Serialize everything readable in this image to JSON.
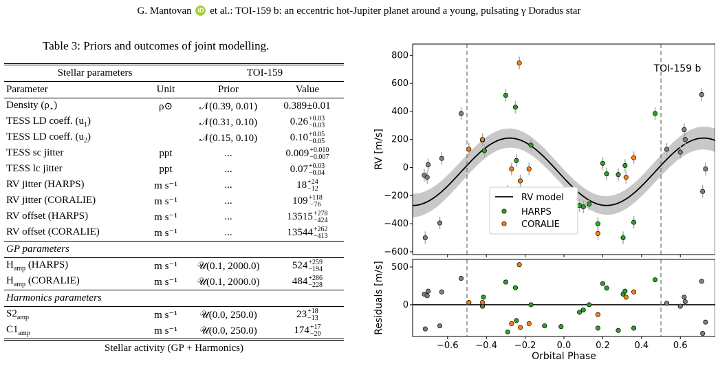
{
  "header": {
    "authors": "G. Mantovan",
    "rest": " et al.: TOI-159 b: an eccentric hot-Jupiter planet around a young, pulsating γ Doradus star",
    "orcid_badge": "iD"
  },
  "table": {
    "caption": "Table 3: Priors and outcomes of joint modelling.",
    "group_header": {
      "left": "Stellar parameters",
      "right": "TOI-159"
    },
    "columns": [
      "Parameter",
      "Unit",
      "Prior",
      "Value"
    ],
    "stellar_rows": [
      {
        "param": "Density (ρ",
        "param_sub": "⋆",
        "param_end": ")",
        "unit": "ρ⊙",
        "prior": "𝒩(0.39, 0.01)",
        "value": "0.389±0.01",
        "up": "",
        "down": ""
      },
      {
        "param": "TESS LD coeff. (u",
        "param_sub": "1",
        "param_end": ")",
        "unit": "",
        "prior": "𝒩(0.31, 0.10)",
        "value": "0.26",
        "up": "+0.03",
        "down": "−0.03"
      },
      {
        "param": "TESS LD coeff. (u",
        "param_sub": "2",
        "param_end": ")",
        "unit": "",
        "prior": "𝒩(0.15, 0.10)",
        "value": "0.10",
        "up": "+0.05",
        "down": "−0.05"
      },
      {
        "param": "TESS sc jitter",
        "param_sub": "",
        "param_end": "",
        "unit": "ppt",
        "prior": "...",
        "value": "0.009",
        "up": "+0.010",
        "down": "−0.007"
      },
      {
        "param": "TESS lc jitter",
        "param_sub": "",
        "param_end": "",
        "unit": "ppt",
        "prior": "...",
        "value": "0.07",
        "up": "+0.03",
        "down": "−0.04"
      },
      {
        "param": "RV jitter (HARPS)",
        "param_sub": "",
        "param_end": "",
        "unit": "m s⁻¹",
        "prior": "...",
        "value": "18",
        "up": "+24",
        "down": "−12"
      },
      {
        "param": "RV jitter (CORALIE)",
        "param_sub": "",
        "param_end": "",
        "unit": "m s⁻¹",
        "prior": "...",
        "value": "109",
        "up": "+118",
        "down": "−76"
      },
      {
        "param": "RV offset (HARPS)",
        "param_sub": "",
        "param_end": "",
        "unit": "m s⁻¹",
        "prior": "...",
        "value": "13515",
        "up": "+278",
        "down": "−424"
      },
      {
        "param": "RV offset (CORALIE)",
        "param_sub": "",
        "param_end": "",
        "unit": "m s⁻¹",
        "prior": "...",
        "value": "13544",
        "up": "+262",
        "down": "−413"
      }
    ],
    "gp_title": "GP parameters",
    "gp_rows": [
      {
        "param": "H",
        "param_sub": "amp",
        "param_end": " (HARPS)",
        "unit": "m s⁻¹",
        "prior": "𝒰(0.1, 2000.0)",
        "value": "524",
        "up": "+259",
        "down": "−194"
      },
      {
        "param": "H",
        "param_sub": "amp",
        "param_end": " (CORALIE)",
        "unit": "m s⁻¹",
        "prior": "𝒰(0.1, 2000.0)",
        "value": "484",
        "up": "+286",
        "down": "−228"
      }
    ],
    "harm_title": "Harmonics parameters",
    "harm_rows": [
      {
        "param": "S2",
        "param_sub": "amp",
        "param_end": "",
        "unit": "m s⁻¹",
        "prior": "𝒰(0.0, 250.0)",
        "value": "23",
        "up": "+18",
        "down": "−13"
      },
      {
        "param": "C1",
        "param_sub": "amp",
        "param_end": "",
        "unit": "m s⁻¹",
        "prior": "𝒰(0.0, 250.0)",
        "value": "174",
        "up": "+17",
        "down": "−20"
      }
    ],
    "footer": "Stellar activity (GP + Harmonics)"
  },
  "chart_data": [
    {
      "type": "scatter",
      "title": "TOI-159 b",
      "xlabel": "",
      "ylabel": "RV [m/s]",
      "xlim": [
        -0.78,
        0.78
      ],
      "ylim": [
        -620,
        880
      ],
      "yticks": [
        -600,
        -400,
        -200,
        0,
        200,
        400,
        600,
        800
      ],
      "vlines": [
        -0.5,
        0.5
      ],
      "legend_position": "lower-center",
      "model": {
        "name": "RV model",
        "amplitude": 240,
        "offset": -30,
        "phase_of_max": -0.28,
        "band_width": 60
      },
      "series": [
        {
          "name": "HARPS",
          "color": "#2ca02c",
          "points": [
            [
              -0.42,
              195
            ],
            [
              -0.41,
              120
            ],
            [
              -0.3,
              515
            ],
            [
              -0.29,
              -170
            ],
            [
              -0.25,
              430
            ],
            [
              -0.245,
              50
            ],
            [
              -0.17,
              160
            ],
            [
              -0.1,
              -270
            ],
            [
              -0.015,
              -270
            ],
            [
              0.08,
              -270
            ],
            [
              0.1,
              -280
            ],
            [
              0.13,
              -260
            ],
            [
              0.175,
              -400
            ],
            [
              0.2,
              30
            ],
            [
              0.22,
              -45
            ],
            [
              0.28,
              -50
            ],
            [
              0.305,
              -500
            ],
            [
              0.315,
              15
            ],
            [
              0.36,
              -390
            ],
            [
              0.47,
              385
            ]
          ]
        },
        {
          "name": "CORALIE",
          "color": "#ff7f0e",
          "points": [
            [
              -0.49,
              130
            ],
            [
              -0.42,
              200
            ],
            [
              -0.27,
              -10
            ],
            [
              -0.23,
              745
            ],
            [
              -0.225,
              -95
            ],
            [
              -0.18,
              -10
            ],
            [
              0.175,
              -470
            ],
            [
              0.32,
              -70
            ],
            [
              0.36,
              70
            ]
          ]
        },
        {
          "name": "",
          "color": "#808080",
          "points": [
            [
              -0.72,
              -55
            ],
            [
              -0.715,
              -500
            ],
            [
              -0.705,
              -70
            ],
            [
              -0.7,
              20
            ],
            [
              -0.64,
              -395
            ],
            [
              -0.63,
              65
            ],
            [
              -0.53,
              385
            ],
            [
              0.53,
              130
            ],
            [
              0.6,
              110
            ],
            [
              0.62,
              270
            ],
            [
              0.625,
              200
            ],
            [
              0.71,
              520
            ],
            [
              0.715,
              -170
            ],
            [
              0.73,
              -10
            ]
          ]
        }
      ]
    },
    {
      "type": "scatter",
      "title": "",
      "xlabel": "Orbital Phase",
      "ylabel": "Residuals [m/s]",
      "xlim": [
        -0.78,
        0.78
      ],
      "ylim": [
        -420,
        600
      ],
      "yticks": [
        0,
        500
      ],
      "xticks": [
        -0.6,
        -0.4,
        -0.2,
        0.0,
        0.2,
        0.4,
        0.6
      ],
      "hline": 0,
      "vlines": [
        -0.5,
        0.5
      ],
      "series": [
        {
          "name": "HARPS",
          "color": "#2ca02c",
          "points": [
            [
              -0.42,
              -20
            ],
            [
              -0.415,
              100
            ],
            [
              -0.3,
              300
            ],
            [
              -0.29,
              -360
            ],
            [
              -0.25,
              225
            ],
            [
              -0.245,
              -210
            ],
            [
              -0.17,
              0
            ],
            [
              -0.1,
              -280
            ],
            [
              -0.015,
              -290
            ],
            [
              0.08,
              -100
            ],
            [
              0.1,
              -70
            ],
            [
              0.13,
              0
            ],
            [
              0.175,
              -310
            ],
            [
              0.2,
              280
            ],
            [
              0.22,
              220
            ],
            [
              0.28,
              -340
            ],
            [
              0.305,
              140
            ],
            [
              0.315,
              180
            ],
            [
              0.36,
              -310
            ],
            [
              0.47,
              330
            ]
          ]
        },
        {
          "name": "CORALIE",
          "color": "#ff7f0e",
          "points": [
            [
              -0.49,
              30
            ],
            [
              -0.42,
              30
            ],
            [
              -0.27,
              -250
            ],
            [
              -0.23,
              530
            ],
            [
              -0.225,
              -300
            ],
            [
              -0.18,
              -250
            ],
            [
              0.175,
              -130
            ],
            [
              0.32,
              100
            ],
            [
              0.36,
              170
            ]
          ]
        },
        {
          "name": "",
          "color": "#808080",
          "points": [
            [
              -0.72,
              140
            ],
            [
              -0.715,
              -320
            ],
            [
              -0.705,
              120
            ],
            [
              -0.7,
              180
            ],
            [
              -0.64,
              -280
            ],
            [
              -0.63,
              170
            ],
            [
              -0.53,
              350
            ],
            [
              0.53,
              20
            ],
            [
              0.6,
              -20
            ],
            [
              0.62,
              100
            ],
            [
              0.625,
              40
            ],
            [
              0.71,
              310
            ],
            [
              0.715,
              -380
            ],
            [
              0.73,
              -230
            ]
          ]
        }
      ]
    }
  ]
}
